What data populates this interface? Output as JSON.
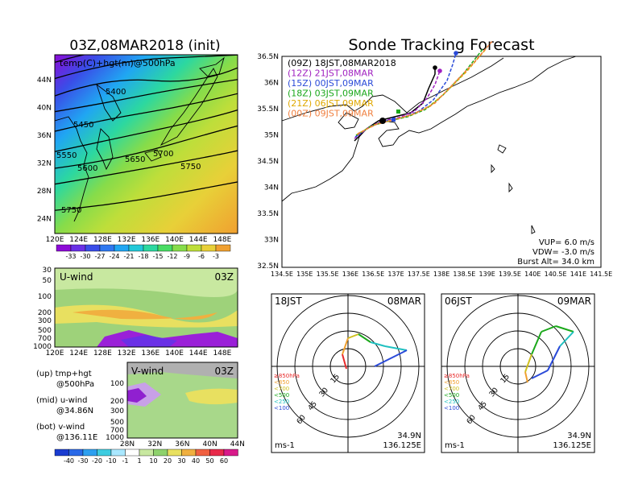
{
  "left_panel": {
    "title": "03Z,08MAR2018 (init)",
    "map_label": "temp(C)+hgt(m)@500hPa",
    "lat_ticks": [
      "44N",
      "40N",
      "36N",
      "32N",
      "28N",
      "24N"
    ],
    "lon_ticks": [
      "120E",
      "124E",
      "128E",
      "132E",
      "136E",
      "140E",
      "144E",
      "148E"
    ],
    "contour_labels": [
      "5400",
      "5450",
      "5550",
      "5600",
      "5650",
      "5700",
      "5750",
      "5750"
    ],
    "temp_colorbar": [
      "-33",
      "-30",
      "-27",
      "-24",
      "-21",
      "-18",
      "-15",
      "-12",
      "-9",
      "-6",
      "-3"
    ],
    "temp_colors": [
      "#8c0bd6",
      "#6a30e6",
      "#3a4de8",
      "#2e78f0",
      "#20a6f2",
      "#22c8d8",
      "#2cd8a0",
      "#49dc64",
      "#86dc4a",
      "#bede3a",
      "#e8d038",
      "#f0a030"
    ],
    "uwind": {
      "label": "U-wind",
      "time": "03Z",
      "p_ticks": [
        "30",
        "50",
        "100",
        "200",
        "300",
        "500",
        "700",
        "1000"
      ],
      "lon_ticks": [
        "120E",
        "124E",
        "128E",
        "132E",
        "136E",
        "140E",
        "144E",
        "148E"
      ]
    },
    "vwind": {
      "label": "V-wind",
      "time": "03Z",
      "p_ticks": [
        "100",
        "200",
        "300",
        "500",
        "700",
        "1000"
      ],
      "lat_ticks": [
        "28N",
        "32N",
        "36N",
        "40N",
        "44N"
      ]
    },
    "legend": {
      "up_line1": "(up) tmp+hgt",
      "up_line2": "@500hPa",
      "mid_line1": "(mid) u-wind",
      "mid_line2": "@34.86N",
      "bot_line1": "(bot) v-wind",
      "bot_line2": "@136.11E"
    },
    "wind_colorbar": [
      "-40",
      "-30",
      "-20",
      "-10",
      "-1",
      "1",
      "10",
      "20",
      "30",
      "40",
      "50",
      "60"
    ],
    "wind_colors": [
      "#1a3cd0",
      "#2a6ae8",
      "#2ea0f0",
      "#3ecce0",
      "#aae8ff",
      "#ffffff",
      "#c8e8a0",
      "#8ed26c",
      "#e8e060",
      "#f0b040",
      "#f06040",
      "#e82a4a",
      "#d81a8a"
    ]
  },
  "tracking": {
    "title": "Sonde Tracking Forecast",
    "lat_ticks": [
      "36.5N",
      "36N",
      "35.5N",
      "35N",
      "34.5N",
      "34N",
      "33.5N",
      "33N",
      "32.5N"
    ],
    "lon_ticks": [
      "134.5E",
      "135E",
      "135.5E",
      "136E",
      "136.5E",
      "137E",
      "137.5E",
      "138E",
      "138.5E",
      "139E",
      "139.5E",
      "140E",
      "140.5E",
      "141E",
      "141.5E"
    ],
    "launches": [
      {
        "label": "(09Z)  18JST,08MAR2018",
        "color": "#000000"
      },
      {
        "label": "(12Z)  21JST,08MAR",
        "color": "#a020c0"
      },
      {
        "label": "(15Z)  00JST,09MAR",
        "color": "#2a4ad8"
      },
      {
        "label": "(18Z)  03JST,09MAR",
        "color": "#1aa81a"
      },
      {
        "label": "(21Z)  06JST,09MAR",
        "color": "#e0a800"
      },
      {
        "label": "(00Z)  09JST,09MAR",
        "color": "#f08040"
      }
    ],
    "params": {
      "vup": "VUP=   6.0  m/s",
      "vdw": "VDW=  -3.0  m/s",
      "burst": "Burst Alt=  34.0  km"
    }
  },
  "hodographs": [
    {
      "time": "18JST",
      "date": "08MAR",
      "lat": "34.9N",
      "lon": "136.125E",
      "unit": "ms-1",
      "ring_labels": [
        "15",
        "30",
        "45",
        "60"
      ],
      "pressure_legend": [
        {
          "label": "≥850hPa",
          "color": "#e82a2a"
        },
        {
          "label": "<850",
          "color": "#f0a030"
        },
        {
          "label": "<700",
          "color": "#d0c020"
        },
        {
          "label": "<500",
          "color": "#1aa81a"
        },
        {
          "label": "<250",
          "color": "#20c0c0"
        },
        {
          "label": "<100",
          "color": "#2a4ad8"
        }
      ]
    },
    {
      "time": "06JST",
      "date": "09MAR",
      "lat": "34.9N",
      "lon": "136.125E",
      "unit": "ms-1",
      "ring_labels": [
        "15",
        "30",
        "45",
        "60"
      ],
      "pressure_legend": [
        {
          "label": "≥850hPa",
          "color": "#e82a2a"
        },
        {
          "label": "<850",
          "color": "#f0a030"
        },
        {
          "label": "<700",
          "color": "#d0c020"
        },
        {
          "label": "<500",
          "color": "#1aa81a"
        },
        {
          "label": "<250",
          "color": "#20c0c0"
        },
        {
          "label": "<100",
          "color": "#2a4ad8"
        }
      ]
    }
  ]
}
